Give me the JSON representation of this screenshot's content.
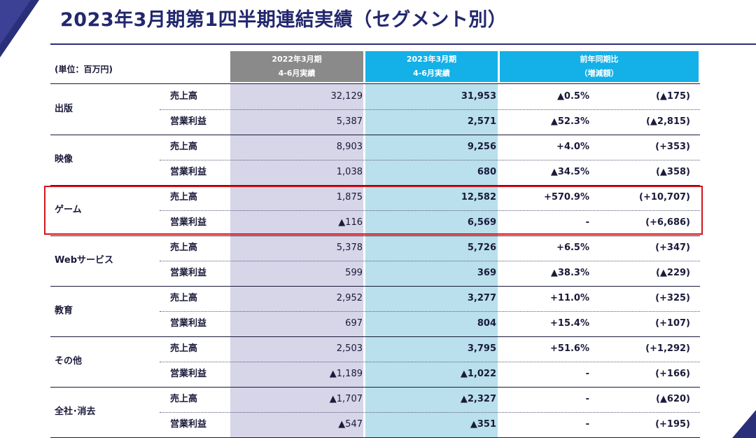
{
  "page": {
    "title": "2023年3月期第1四半期連結実績（セグメント別）",
    "unit_label": "(単位：百万円)"
  },
  "header": {
    "prev_line1": "2022年3月期",
    "prev_line2": "4-6月実績",
    "curr_line1": "2023年3月期",
    "curr_line2": "4-6月実績",
    "yoy_line1": "前年同期比",
    "yoy_line2": "（増減額）"
  },
  "colors": {
    "title": "#22276d",
    "header_prev": "#8a8a8a",
    "header_curr": "#14b0e8",
    "col_prev_bg": "#d7d5e8",
    "col_curr_bg": "#b9e0ec",
    "highlight_border": "#d0161d"
  },
  "segments": [
    {
      "name": "出版",
      "rows": [
        {
          "label": "売上高",
          "prev": "32,129",
          "curr": "31,953",
          "pct": "▲0.5%",
          "abs": "(▲175)"
        },
        {
          "label": "営業利益",
          "prev": "5,387",
          "curr": "2,571",
          "pct": "▲52.3%",
          "abs": "(▲2,815)"
        }
      ]
    },
    {
      "name": "映像",
      "rows": [
        {
          "label": "売上高",
          "prev": "8,903",
          "curr": "9,256",
          "pct": "+4.0%",
          "abs": "(+353)"
        },
        {
          "label": "営業利益",
          "prev": "1,038",
          "curr": "680",
          "pct": "▲34.5%",
          "abs": "(▲358)"
        }
      ]
    },
    {
      "name": "ゲーム",
      "rows": [
        {
          "label": "売上高",
          "prev": "1,875",
          "curr": "12,582",
          "pct": "+570.9%",
          "abs": "(+10,707)"
        },
        {
          "label": "営業利益",
          "prev": "▲116",
          "curr": "6,569",
          "pct": "-",
          "abs": "(+6,686)"
        }
      ]
    },
    {
      "name": "Webサービス",
      "rows": [
        {
          "label": "売上高",
          "prev": "5,378",
          "curr": "5,726",
          "pct": "+6.5%",
          "abs": "(+347)"
        },
        {
          "label": "営業利益",
          "prev": "599",
          "curr": "369",
          "pct": "▲38.3%",
          "abs": "(▲229)"
        }
      ]
    },
    {
      "name": "教育",
      "rows": [
        {
          "label": "売上高",
          "prev": "2,952",
          "curr": "3,277",
          "pct": "+11.0%",
          "abs": "(+325)"
        },
        {
          "label": "営業利益",
          "prev": "697",
          "curr": "804",
          "pct": "+15.4%",
          "abs": "(+107)"
        }
      ]
    },
    {
      "name": "その他",
      "rows": [
        {
          "label": "売上高",
          "prev": "2,503",
          "curr": "3,795",
          "pct": "+51.6%",
          "abs": "(+1,292)"
        },
        {
          "label": "営業利益",
          "prev": "▲1,189",
          "curr": "▲1,022",
          "pct": "-",
          "abs": "(+166)"
        }
      ]
    },
    {
      "name": "全社･消去",
      "rows": [
        {
          "label": "売上高",
          "prev": "▲1,707",
          "curr": "▲2,327",
          "pct": "-",
          "abs": "(▲620)"
        },
        {
          "label": "営業利益",
          "prev": "▲547",
          "curr": "▲351",
          "pct": "-",
          "abs": "(+195)"
        }
      ]
    }
  ]
}
